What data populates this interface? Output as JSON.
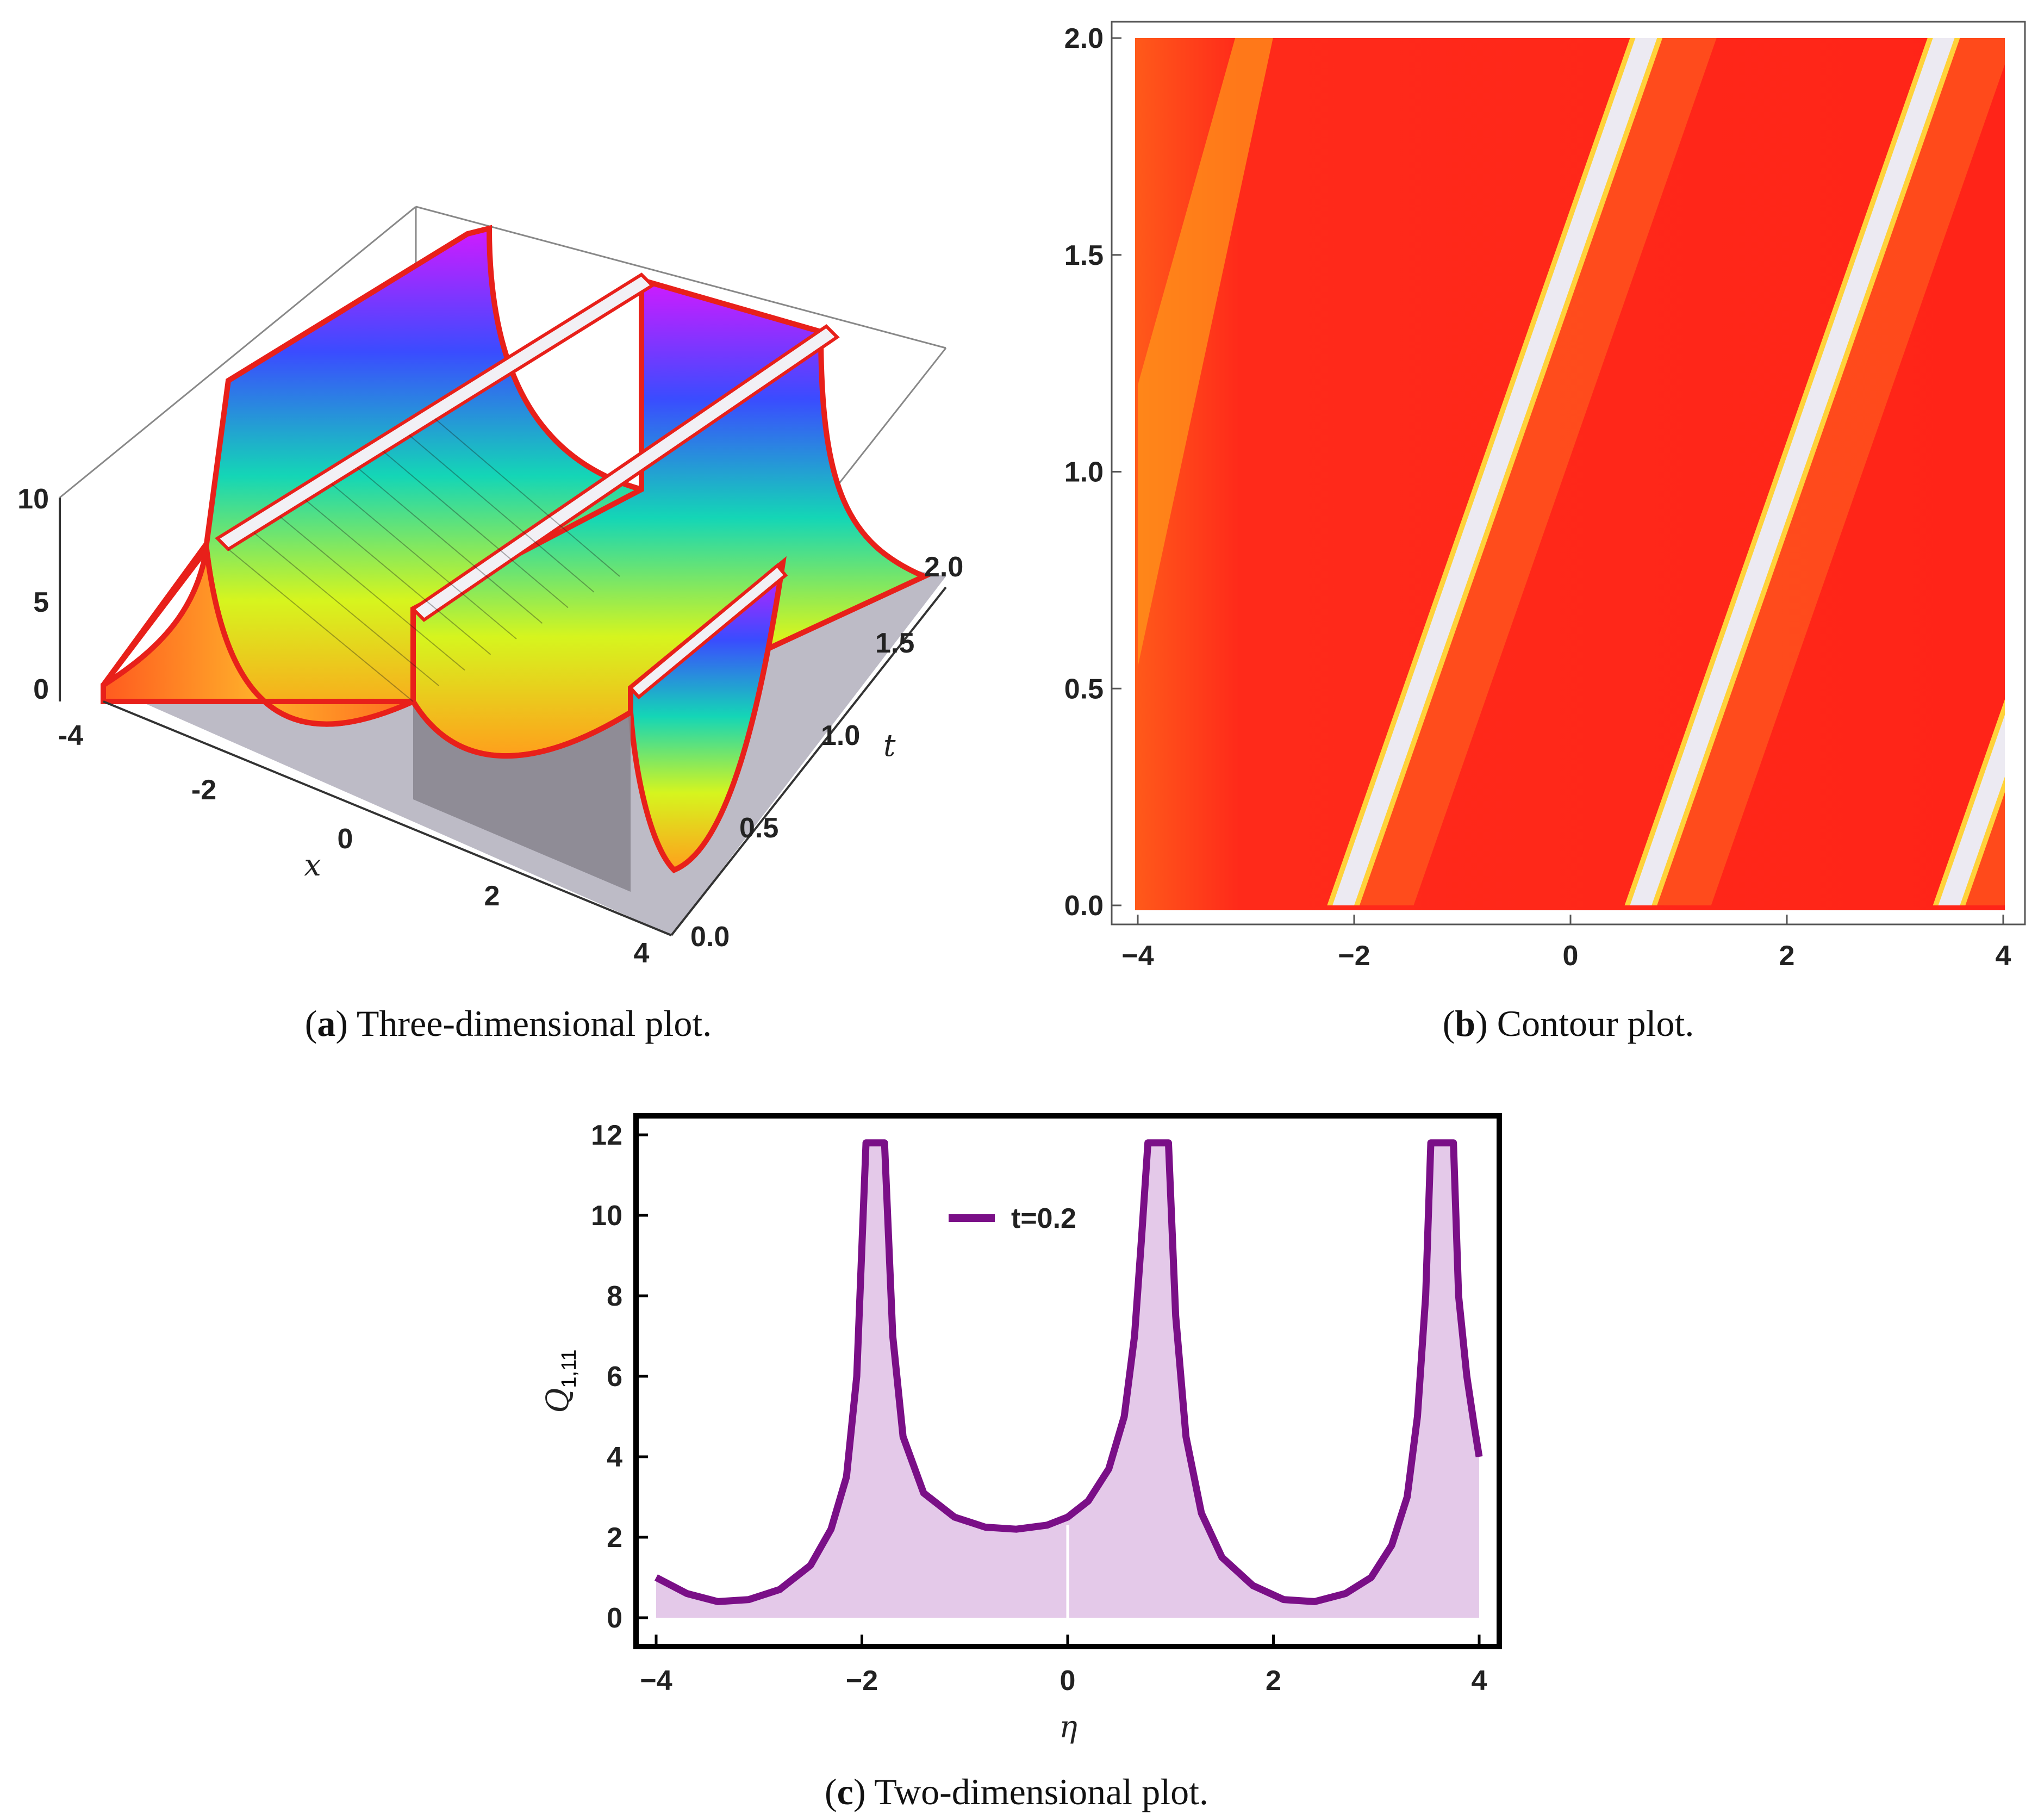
{
  "panels": {
    "a": {
      "label": "a",
      "caption": "Three-dimensional plot.",
      "z_ticks": [
        "0",
        "5",
        "10"
      ],
      "x_ticks": [
        "-4",
        "-2",
        "0",
        "2",
        "4"
      ],
      "t_ticks": [
        "0.0",
        "0.5",
        "1.0",
        "1.5",
        "2.0"
      ],
      "x_label": "x",
      "t_label": "t"
    },
    "b": {
      "label": "b",
      "caption": "Contour plot.",
      "x_ticks": [
        "-4",
        "-2",
        "0",
        "2",
        "4"
      ],
      "y_ticks": [
        "0.0",
        "0.5",
        "1.0",
        "1.5",
        "2.0"
      ]
    },
    "c": {
      "label": "c",
      "caption": "Two-dimensional plot.",
      "x_ticks": [
        "-4",
        "-2",
        "0",
        "2",
        "4"
      ],
      "y_ticks": [
        "0",
        "2",
        "4",
        "6",
        "8",
        "10",
        "12"
      ],
      "x_label": "η",
      "y_label_main": "Q",
      "y_label_sub": "1,11",
      "legend": "t=0.2"
    }
  },
  "chart_data": [
    {
      "type": "surface3d",
      "panel": "a",
      "xrange": [
        -4,
        4
      ],
      "trange": [
        0,
        2
      ],
      "zrange": [
        0,
        10
      ],
      "xlabel": "x",
      "ylabel": "t",
      "singular_lines_x_at_t0": [
        -2.0,
        0.7,
        3.4
      ],
      "wave_speed": 1.4
    },
    {
      "type": "heatmap",
      "panel": "b",
      "xrange": [
        -4,
        4
      ],
      "yrange": [
        0,
        2
      ],
      "white_bands_x_at_y0": [
        -2.1,
        0.65,
        3.5
      ],
      "band_slope_dx_dy": 1.4
    },
    {
      "type": "line",
      "panel": "c",
      "series": [
        {
          "name": "t=0.2",
          "x": [
            -4.0,
            -3.7,
            -3.4,
            -3.1,
            -2.8,
            -2.5,
            -2.3,
            -2.15,
            -2.05,
            -1.96,
            -1.78,
            -1.7,
            -1.6,
            -1.4,
            -1.1,
            -0.8,
            -0.5,
            -0.2,
            0.0,
            0.2,
            0.4,
            0.55,
            0.65,
            0.72,
            0.78,
            0.98,
            1.05,
            1.15,
            1.3,
            1.5,
            1.8,
            2.1,
            2.4,
            2.7,
            2.95,
            3.15,
            3.3,
            3.4,
            3.48,
            3.53,
            3.75,
            3.8,
            3.88,
            3.95,
            4.0
          ],
          "y": [
            1.0,
            0.6,
            0.4,
            0.45,
            0.7,
            1.3,
            2.2,
            3.5,
            6.0,
            11.8,
            11.8,
            7.0,
            4.5,
            3.1,
            2.5,
            2.25,
            2.2,
            2.3,
            2.5,
            2.9,
            3.7,
            5.0,
            7.0,
            9.5,
            11.8,
            11.8,
            7.5,
            4.5,
            2.6,
            1.5,
            0.8,
            0.45,
            0.4,
            0.6,
            1.0,
            1.8,
            3.0,
            5.0,
            8.0,
            11.8,
            11.8,
            8.0,
            6.0,
            4.8,
            4.0
          ]
        }
      ],
      "xlim": [
        -4,
        4
      ],
      "ylim": [
        -0.7,
        12.3
      ],
      "xlabel": "η",
      "ylabel": "Q1,11",
      "legend": "t=0.2"
    }
  ]
}
